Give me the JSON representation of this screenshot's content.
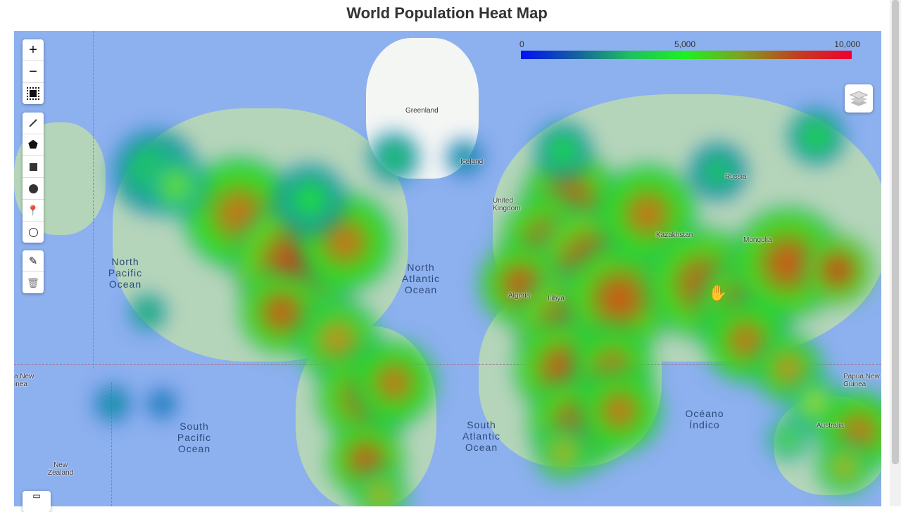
{
  "title": "World Population Heat Map",
  "legend": {
    "min": "0",
    "mid": "5,000",
    "max": "10,000",
    "colors": [
      "#0010f0",
      "#20f020",
      "#f00030"
    ]
  },
  "zoom_controls": {
    "zoom_in": "+",
    "zoom_out": "−"
  },
  "draw_tools": [
    "polyline-icon",
    "polygon-icon",
    "rectangle-icon",
    "circle-icon",
    "marker-icon",
    "circlemarker-icon"
  ],
  "edit_tools": [
    "edit-icon",
    "trash-icon"
  ],
  "oceans": {
    "north_pacific": "North\nPacific\nOcean",
    "north_atlantic": "North\nAtlantic\nOcean",
    "south_pacific": "South\nPacific\nOcean",
    "south_atlantic": "South\nAtlantic\nOcean",
    "indian": "Océano\nÍndico"
  },
  "places": {
    "greenland": "Greenland",
    "iceland": "Iceland",
    "uk": "United\nKingdom",
    "russia": "Russia",
    "kazakhstan": "Kazakhstan",
    "mongolia": "Mongolia",
    "algeria": "Algeria",
    "libya": "Libya",
    "australia": "Australia",
    "new_zealand": "New\nZealand",
    "png_left": "a New\ninea",
    "png_right": "Papua New\nGuinea"
  },
  "colors": {
    "ocean": "#8db0ef",
    "land": "#b9d9b4"
  }
}
